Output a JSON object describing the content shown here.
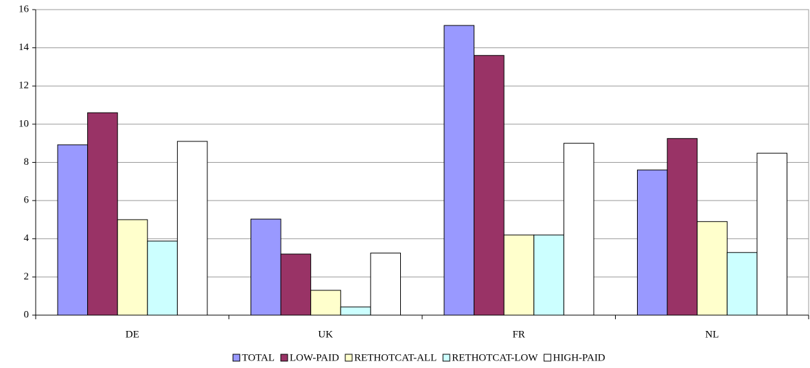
{
  "chart_data": {
    "type": "bar",
    "categories": [
      "DE",
      "UK",
      "FR",
      "NL"
    ],
    "series": [
      {
        "name": "TOTAL",
        "color": "#9999ff",
        "values": [
          8.92,
          5.03,
          15.17,
          7.6
        ]
      },
      {
        "name": "LOW-PAID",
        "color": "#993366",
        "values": [
          10.6,
          3.2,
          13.6,
          9.25
        ]
      },
      {
        "name": "RETHOTCAT-ALL",
        "color": "#ffffcc",
        "values": [
          5.0,
          1.3,
          4.2,
          4.9
        ]
      },
      {
        "name": "RETHOTCAT-LOW",
        "color": "#ccffff",
        "values": [
          3.88,
          0.43,
          4.2,
          3.28
        ]
      },
      {
        "name": "HIGH-PAID",
        "color": "#ffffff",
        "values": [
          9.1,
          3.25,
          9.0,
          8.48
        ]
      }
    ],
    "ylim": [
      0,
      16
    ],
    "yticks": [
      0,
      2,
      4,
      6,
      8,
      10,
      12,
      14,
      16
    ],
    "grid": true,
    "legend": "bottom"
  }
}
